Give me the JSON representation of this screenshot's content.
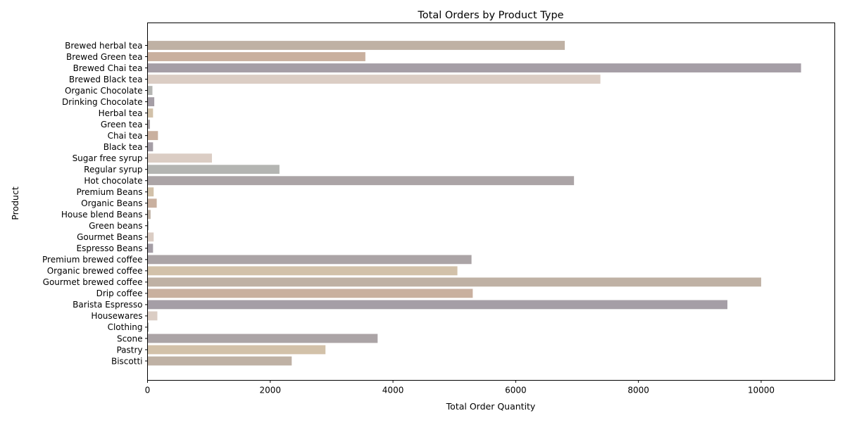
{
  "chart_data": {
    "type": "bar",
    "orientation": "horizontal",
    "title": "Total Orders by Product Type",
    "xlabel": "Total Order Quantity",
    "ylabel": "Product",
    "xlim": [
      0,
      11200
    ],
    "xticks": [
      0,
      2000,
      4000,
      6000,
      8000,
      10000
    ],
    "grid": false,
    "categories": [
      "Biscotti",
      "Pastry",
      "Scone",
      "Clothing",
      "Housewares",
      "Barista Espresso",
      "Drip coffee",
      "Gourmet brewed coffee",
      "Organic brewed coffee",
      "Premium brewed coffee",
      "Espresso Beans",
      "Gourmet Beans",
      "Green beans",
      "House blend Beans",
      "Organic Beans",
      "Premium Beans",
      "Hot chocolate",
      "Regular syrup",
      "Sugar free syrup",
      "Black tea",
      "Chai tea",
      "Green tea",
      "Herbal tea",
      "Drinking Chocolate",
      "Organic Chocolate",
      "Brewed Black tea",
      "Brewed Chai tea",
      "Brewed Green tea",
      "Brewed herbal tea"
    ],
    "values": [
      2350,
      2900,
      3750,
      20,
      160,
      9450,
      5300,
      10000,
      5050,
      5280,
      90,
      100,
      20,
      50,
      150,
      100,
      6950,
      2150,
      1050,
      90,
      170,
      40,
      90,
      110,
      80,
      7380,
      10650,
      3550,
      6800
    ],
    "colors": [
      "#bfb1a4",
      "#d2c1a9",
      "#aba4a6",
      "#b4b5b2",
      "#dbcdc4",
      "#a59ea6",
      "#c9b09f",
      "#bfb1a4",
      "#d2c1a9",
      "#aba4a6",
      "#a59ea6",
      "#dbcdc4",
      "#b4b5b2",
      "#bfb1a4",
      "#c9b09f",
      "#d2c1a9",
      "#aba4a6",
      "#b4b5b2",
      "#dbcdc4",
      "#a59ea6",
      "#c9b09f",
      "#aba4a6",
      "#d2c1a9",
      "#a59ea6",
      "#b4b5b2",
      "#dbcdc4",
      "#a59ea6",
      "#c9b09f",
      "#bfb1a4"
    ]
  }
}
